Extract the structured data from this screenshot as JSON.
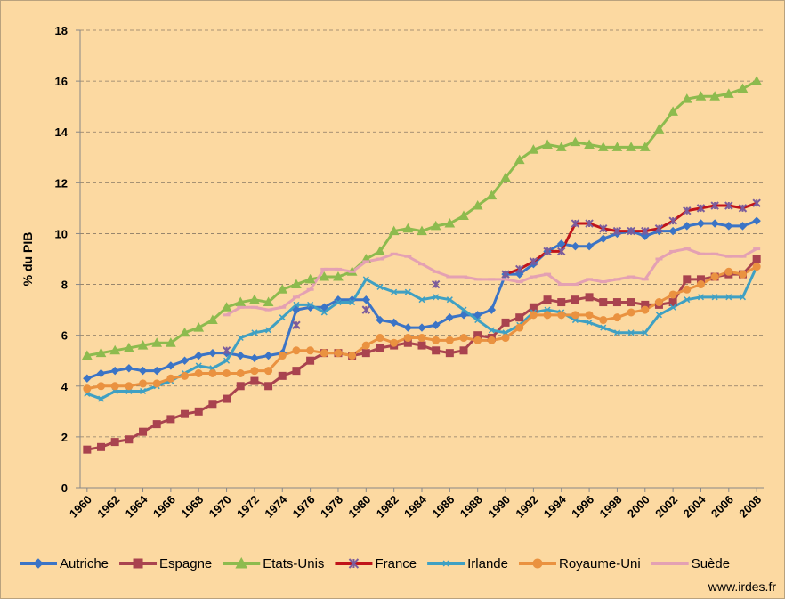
{
  "chart_data": {
    "type": "line",
    "ylabel": "% du PIB",
    "source": "www.irdes.fr",
    "x": [
      1960,
      1961,
      1962,
      1963,
      1964,
      1965,
      1966,
      1967,
      1968,
      1969,
      1970,
      1971,
      1972,
      1973,
      1974,
      1975,
      1976,
      1977,
      1978,
      1979,
      1980,
      1981,
      1982,
      1983,
      1984,
      1985,
      1986,
      1987,
      1988,
      1989,
      1990,
      1991,
      1992,
      1993,
      1994,
      1995,
      1996,
      1997,
      1998,
      1999,
      2000,
      2001,
      2002,
      2003,
      2004,
      2005,
      2006,
      2007,
      2008
    ],
    "xlim": [
      1959.5,
      2008.5
    ],
    "xticks": [
      1960,
      1962,
      1964,
      1966,
      1968,
      1970,
      1972,
      1974,
      1976,
      1978,
      1980,
      1982,
      1984,
      1986,
      1988,
      1990,
      1992,
      1994,
      1996,
      1998,
      2000,
      2002,
      2004,
      2006,
      2008
    ],
    "ylim": [
      0,
      18
    ],
    "yticks": [
      0,
      2,
      4,
      6,
      8,
      10,
      12,
      14,
      16,
      18
    ],
    "grid": true,
    "legend": "bottom",
    "series": [
      {
        "name": "Autriche",
        "color": "#3b74c6",
        "marker": "diamond",
        "values": [
          4.3,
          4.5,
          4.6,
          4.7,
          4.6,
          4.6,
          4.8,
          5.0,
          5.2,
          5.3,
          5.3,
          5.2,
          5.1,
          5.2,
          5.3,
          7.0,
          7.1,
          7.1,
          7.4,
          7.4,
          7.4,
          6.6,
          6.5,
          6.3,
          6.3,
          6.4,
          6.7,
          6.8,
          6.8,
          7.0,
          8.4,
          8.4,
          8.8,
          9.3,
          9.6,
          9.5,
          9.5,
          9.8,
          10.0,
          10.1,
          9.9,
          10.1,
          10.1,
          10.3,
          10.4,
          10.4,
          10.3,
          10.3,
          10.5
        ]
      },
      {
        "name": "Espagne",
        "color": "#a9434f",
        "marker": "square",
        "values": [
          1.5,
          1.6,
          1.8,
          1.9,
          2.2,
          2.5,
          2.7,
          2.9,
          3.0,
          3.3,
          3.5,
          4.0,
          4.2,
          4.0,
          4.4,
          4.6,
          5.0,
          5.3,
          5.3,
          5.2,
          5.3,
          5.5,
          5.6,
          5.7,
          5.6,
          5.4,
          5.3,
          5.4,
          6.0,
          5.9,
          6.5,
          6.7,
          7.1,
          7.4,
          7.3,
          7.4,
          7.5,
          7.3,
          7.3,
          7.3,
          7.2,
          7.2,
          7.3,
          8.2,
          8.2,
          8.3,
          8.4,
          8.4,
          9.0
        ]
      },
      {
        "name": "Etats-Unis",
        "color": "#8dbb4e",
        "marker": "triangle",
        "values": [
          5.2,
          5.3,
          5.4,
          5.5,
          5.6,
          5.7,
          5.7,
          6.1,
          6.3,
          6.6,
          7.1,
          7.3,
          7.4,
          7.3,
          7.8,
          8.0,
          8.2,
          8.3,
          8.3,
          8.5,
          9.0,
          9.3,
          10.1,
          10.2,
          10.1,
          10.3,
          10.4,
          10.7,
          11.1,
          11.5,
          12.2,
          12.9,
          13.3,
          13.5,
          13.4,
          13.6,
          13.5,
          13.4,
          13.4,
          13.4,
          13.4,
          14.1,
          14.8,
          15.3,
          15.4,
          15.4,
          15.5,
          15.7,
          16.0
        ]
      },
      {
        "name": "France",
        "color": "#c0141a",
        "marker_color": "#7b5c9c",
        "marker": "star",
        "values": [
          null,
          null,
          null,
          null,
          null,
          null,
          null,
          null,
          null,
          null,
          5.4,
          null,
          null,
          null,
          null,
          6.4,
          null,
          null,
          null,
          null,
          7.0,
          null,
          null,
          null,
          null,
          8.0,
          null,
          null,
          null,
          null,
          8.4,
          8.6,
          8.9,
          9.3,
          9.3,
          10.4,
          10.4,
          10.2,
          10.1,
          10.1,
          10.1,
          10.2,
          10.5,
          10.9,
          11.0,
          11.1,
          11.1,
          11.0,
          11.2
        ]
      },
      {
        "name": "Irlande",
        "color": "#3fa0c3",
        "marker": "x",
        "values": [
          3.7,
          3.5,
          3.8,
          3.8,
          3.8,
          4.0,
          4.2,
          4.5,
          4.8,
          4.7,
          5.0,
          5.9,
          6.1,
          6.2,
          6.7,
          7.2,
          7.2,
          6.9,
          7.3,
          7.3,
          8.2,
          7.9,
          7.7,
          7.7,
          7.4,
          7.5,
          7.4,
          7.0,
          6.6,
          6.2,
          6.1,
          6.4,
          6.9,
          7.0,
          6.9,
          6.6,
          6.5,
          6.3,
          6.1,
          6.1,
          6.1,
          6.8,
          7.1,
          7.4,
          7.5,
          7.5,
          7.5,
          7.5,
          8.7
        ]
      },
      {
        "name": "Royaume-Uni",
        "color": "#ea9240",
        "marker": "circle",
        "values": [
          3.9,
          4.0,
          4.0,
          4.0,
          4.1,
          4.1,
          4.3,
          4.4,
          4.5,
          4.5,
          4.5,
          4.5,
          4.6,
          4.6,
          5.2,
          5.4,
          5.4,
          5.3,
          5.3,
          5.2,
          5.6,
          5.9,
          5.7,
          5.9,
          5.9,
          5.8,
          5.8,
          5.9,
          5.8,
          5.8,
          5.9,
          6.3,
          6.8,
          6.8,
          6.8,
          6.8,
          6.8,
          6.6,
          6.7,
          6.9,
          7.0,
          7.3,
          7.6,
          7.8,
          8.0,
          8.3,
          8.5,
          8.4,
          8.7
        ]
      },
      {
        "name": "Suède",
        "color": "#e4a1b3",
        "marker": "dash",
        "values": [
          null,
          null,
          null,
          null,
          null,
          null,
          null,
          null,
          null,
          null,
          6.8,
          7.1,
          7.1,
          7.0,
          7.1,
          7.5,
          7.8,
          8.6,
          8.6,
          8.5,
          8.9,
          9.0,
          9.2,
          9.1,
          8.8,
          8.5,
          8.3,
          8.3,
          8.2,
          8.2,
          8.2,
          8.1,
          8.3,
          8.4,
          8.0,
          8.0,
          8.2,
          8.1,
          8.2,
          8.3,
          8.2,
          9.0,
          9.3,
          9.4,
          9.2,
          9.2,
          9.1,
          9.1,
          9.4
        ]
      }
    ]
  }
}
